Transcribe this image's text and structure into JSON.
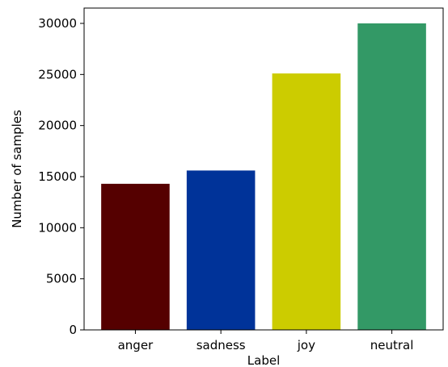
{
  "chart_data": {
    "type": "bar",
    "title": "",
    "xlabel": "Label",
    "ylabel": "Number of samples",
    "categories": [
      "anger",
      "sadness",
      "joy",
      "neutral"
    ],
    "values": [
      14300,
      15600,
      25100,
      30000
    ],
    "colors": [
      "#550000",
      "#003399",
      "#cccc00",
      "#339966"
    ],
    "ylim": [
      0,
      31500
    ],
    "yticks": [
      0,
      5000,
      10000,
      15000,
      20000,
      25000,
      30000
    ],
    "ytick_labels": [
      "0",
      "5000",
      "10000",
      "15000",
      "20000",
      "25000",
      "30000"
    ],
    "grid": false,
    "legend": "none"
  }
}
